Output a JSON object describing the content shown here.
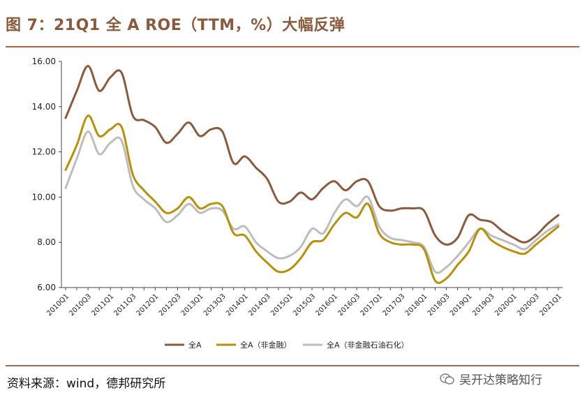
{
  "header": {
    "title": "图 7：21Q1 全 A ROE（TTM，%）大幅反弹"
  },
  "footer": {
    "source": "资料来源：wind，德邦研究所",
    "watermark": "吴开达策略知行"
  },
  "chart_data": {
    "type": "line",
    "title": "",
    "xlabel": "",
    "ylabel": "",
    "ylim": [
      6,
      16
    ],
    "yticks": [
      "16.00",
      "14.00",
      "12.00",
      "10.00",
      "8.00",
      "6.00"
    ],
    "ytick_values": [
      16,
      14,
      12,
      10,
      8,
      6
    ],
    "categories": [
      "2010Q1",
      "2010Q2",
      "2010Q3",
      "2010Q4",
      "2011Q1",
      "2011Q2",
      "2011Q3",
      "2011Q4",
      "2012Q1",
      "2012Q2",
      "2012Q3",
      "2012Q4",
      "2013Q1",
      "2013Q2",
      "2013Q3",
      "2013Q4",
      "2014Q1",
      "2014Q2",
      "2014Q3",
      "2014Q4",
      "2015Q1",
      "2015Q2",
      "2015Q3",
      "2015Q4",
      "2016Q1",
      "2016Q2",
      "2016Q3",
      "2016Q4",
      "2017Q1",
      "2017Q2",
      "2017Q3",
      "2017Q4",
      "2018Q1",
      "2018Q2",
      "2018Q3",
      "2018Q4",
      "2019Q1",
      "2019Q2",
      "2019Q3",
      "2019Q4",
      "2020Q1",
      "2020Q2",
      "2020Q3",
      "2020Q4",
      "2021Q1"
    ],
    "xtick_labels": [
      "2010Q1",
      "2010Q3",
      "2011Q1",
      "2011Q3",
      "2012Q1",
      "2012Q3",
      "2013Q1",
      "2013Q3",
      "2014Q1",
      "2014Q3",
      "2015Q1",
      "2015Q3",
      "2016Q1",
      "2016Q3",
      "2017Q1",
      "2017Q3",
      "2018Q1",
      "2018Q3",
      "2019Q1",
      "2019Q3",
      "2020Q1",
      "2020Q3",
      "2021Q1"
    ],
    "series": [
      {
        "name": "全A",
        "color": "#8B5A3C",
        "values": [
          13.5,
          14.7,
          15.8,
          14.7,
          15.3,
          15.5,
          13.6,
          13.4,
          13.1,
          12.4,
          12.8,
          13.3,
          12.7,
          13.0,
          12.9,
          11.5,
          11.8,
          11.3,
          10.8,
          9.8,
          9.8,
          10.2,
          9.9,
          10.4,
          10.7,
          10.3,
          10.7,
          10.7,
          9.6,
          9.4,
          9.5,
          9.5,
          9.4,
          8.3,
          7.9,
          8.2,
          9.2,
          9.0,
          8.9,
          8.5,
          8.2,
          8.0,
          8.3,
          8.8,
          9.2
        ]
      },
      {
        "name": "全A（非金融）",
        "color": "#B8900A",
        "values": [
          11.2,
          12.3,
          13.6,
          12.7,
          13.0,
          13.1,
          11.0,
          10.3,
          9.8,
          9.3,
          9.5,
          10.0,
          9.5,
          9.7,
          9.6,
          8.4,
          8.3,
          7.6,
          7.1,
          6.7,
          6.8,
          7.3,
          8.0,
          8.1,
          8.8,
          9.3,
          9.1,
          9.7,
          8.4,
          8.0,
          7.9,
          7.9,
          7.7,
          6.3,
          6.4,
          7.0,
          7.6,
          8.6,
          8.1,
          7.8,
          7.6,
          7.5,
          7.9,
          8.3,
          8.7
        ]
      },
      {
        "name": "全A（非金融石油石化）",
        "color": "#BDBDBD",
        "values": [
          10.4,
          11.7,
          12.9,
          11.9,
          12.4,
          12.5,
          10.5,
          9.9,
          9.5,
          8.9,
          9.2,
          9.7,
          9.3,
          9.5,
          9.4,
          8.6,
          8.7,
          8.0,
          7.6,
          7.3,
          7.4,
          7.8,
          8.6,
          8.4,
          9.3,
          9.9,
          9.6,
          10.0,
          8.7,
          8.2,
          8.1,
          8.0,
          7.8,
          6.7,
          6.9,
          7.4,
          8.0,
          8.6,
          8.3,
          8.1,
          7.9,
          7.7,
          8.1,
          8.5,
          8.8
        ]
      }
    ],
    "grid": false,
    "legend": "bottom-center"
  }
}
